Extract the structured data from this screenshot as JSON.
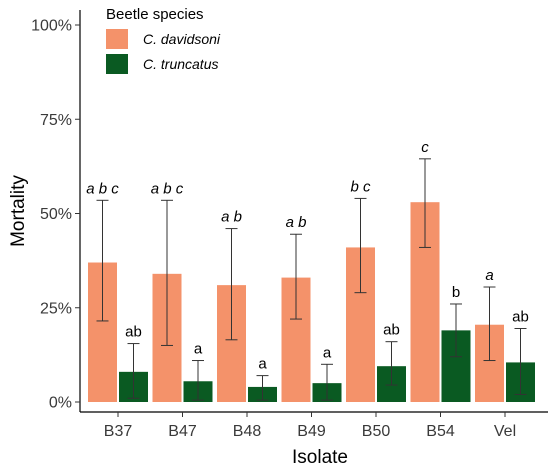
{
  "chart_data": {
    "type": "bar",
    "title": "",
    "xlabel": "Isolate",
    "ylabel": "Mortality",
    "categories": [
      "B37",
      "B47",
      "B48",
      "B49",
      "B50",
      "B54",
      "Vel"
    ],
    "ylim": [
      0,
      100
    ],
    "yticks": [
      0,
      25,
      50,
      75,
      100
    ],
    "ytick_labels": [
      "0%",
      "25%",
      "50%",
      "75%",
      "100%"
    ],
    "grid": false,
    "legend": {
      "title": "Beetle species",
      "position": "top-left"
    },
    "colors": {
      "C. davidsoni": "#F4926A",
      "C. truncatus": "#0A5A22"
    },
    "series": [
      {
        "name": "C. davidsoni",
        "values": [
          37,
          34,
          31,
          33,
          41,
          53,
          20.5
        ],
        "error_low": [
          21.5,
          15,
          16.5,
          22,
          29,
          41,
          11
        ],
        "error_high": [
          53.5,
          53.5,
          46,
          44.5,
          54,
          64.5,
          30.5
        ],
        "letters": [
          "abc",
          "abc",
          "ab",
          "ab",
          "bc",
          "c",
          "a"
        ]
      },
      {
        "name": "C. truncatus",
        "values": [
          8,
          5.5,
          4,
          5,
          9.5,
          19,
          10.5
        ],
        "error_low": [
          1,
          0.5,
          0.5,
          0.5,
          4.5,
          12,
          2
        ],
        "error_high": [
          15.5,
          11,
          7,
          10,
          16,
          26,
          19.5
        ],
        "letters": [
          "ab",
          "a",
          "a",
          "a",
          "ab",
          "b",
          "ab"
        ]
      }
    ]
  }
}
